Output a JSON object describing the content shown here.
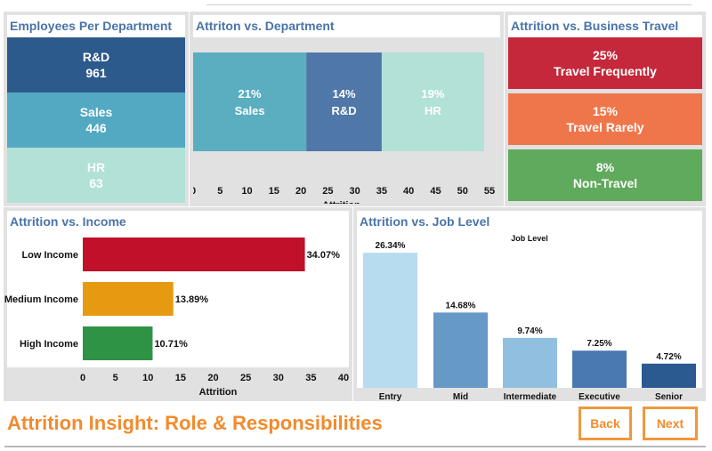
{
  "panels": {
    "employees": {
      "title": "Employees Per Department"
    },
    "attrition_department": {
      "title": "Attriton vs. Department"
    },
    "attrition_travel": {
      "title": "Attrition vs. Business Travel"
    },
    "attrition_income": {
      "title": "Attrition vs. Income"
    },
    "attrition_joblevel": {
      "title": "Attrition vs. Job Level"
    }
  },
  "employees_tiles": [
    {
      "name": "R&D",
      "value": "961",
      "color": "#2d5a8c"
    },
    {
      "name": "Sales",
      "value": "446",
      "color": "#54a9c2"
    },
    {
      "name": "HR",
      "value": "63",
      "color": "#b1e1d7"
    }
  ],
  "travel_tiles": [
    {
      "pct": "25%",
      "label": "Travel Frequently",
      "color": "#c4283a"
    },
    {
      "pct": "15%",
      "label": "Travel Rarely",
      "color": "#ef764a"
    },
    {
      "pct": "8%",
      "label": "Non-Travel",
      "color": "#5faa5c"
    }
  ],
  "footer": {
    "title": "Attrition Insight: Role & Responsibilities",
    "back_label": "Back",
    "next_label": "Next"
  },
  "chart_data": [
    {
      "type": "bar",
      "orientation": "horizontal-stacked",
      "title": "Attriton vs. Department",
      "xlabel": "Attrition",
      "xlim": [
        0,
        55
      ],
      "ticks": [
        0,
        5,
        10,
        15,
        20,
        25,
        30,
        35,
        40,
        45,
        50,
        55
      ],
      "segments": [
        {
          "category": "Sales",
          "value": 21,
          "label": "21%",
          "color": "#5aaec0"
        },
        {
          "category": "R&D",
          "value": 14,
          "label": "14%",
          "color": "#4f77a8"
        },
        {
          "category": "HR",
          "value": 19,
          "label": "19%",
          "color": "#b1e1d7"
        }
      ]
    },
    {
      "type": "bar",
      "orientation": "horizontal",
      "title": "Attrition vs. Income",
      "xlabel": "Attrition",
      "xlim": [
        0,
        40
      ],
      "ticks": [
        0,
        5,
        10,
        15,
        20,
        25,
        30,
        35,
        40
      ],
      "categories": [
        "Low Income",
        "Medium Income",
        "High Income"
      ],
      "values": [
        34.07,
        13.89,
        10.71
      ],
      "labels": [
        "34.07%",
        "13.89%",
        "10.71%"
      ],
      "colors": [
        "#c0102a",
        "#e59a11",
        "#2f9345"
      ]
    },
    {
      "type": "bar",
      "orientation": "vertical",
      "title": "Attrition vs. Job Level",
      "legend_title": "Job Level",
      "ylim": [
        0,
        30
      ],
      "categories": [
        "Entry",
        "Mid",
        "Intermediate",
        "Executive",
        "Senior"
      ],
      "values": [
        26.34,
        14.68,
        9.74,
        7.25,
        4.72
      ],
      "labels": [
        "26.34%",
        "14.68%",
        "9.74%",
        "7.25%",
        "4.72%"
      ],
      "colors": [
        "#b7dcf0",
        "#6699c6",
        "#90bfe0",
        "#4a78b0",
        "#2a5a90"
      ]
    }
  ]
}
